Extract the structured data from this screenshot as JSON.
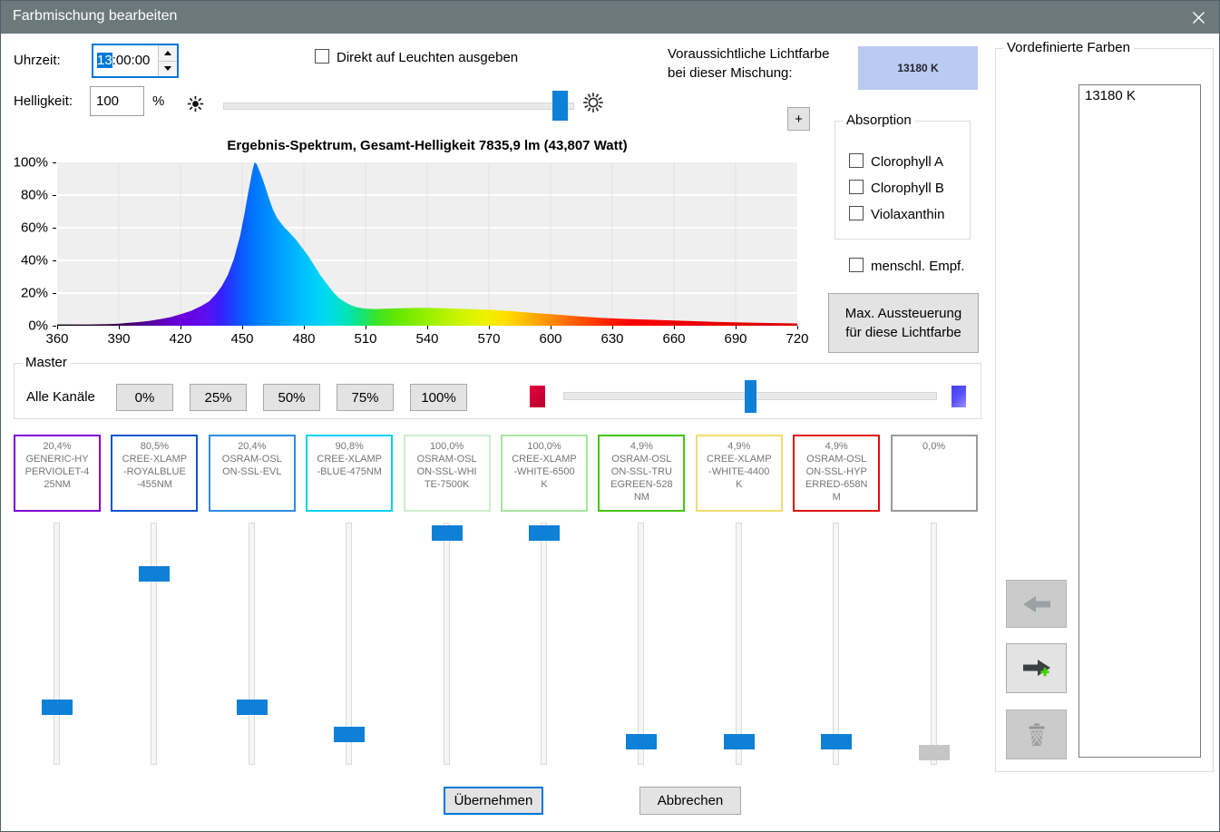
{
  "window": {
    "title": "Farbmischung bearbeiten",
    "close_icon": "close-x"
  },
  "time": {
    "label": "Uhrzeit:",
    "value": "13:00:00",
    "selected_part": "13",
    "rest_part": ":00:00"
  },
  "direct_output_checkbox": {
    "label": "Direkt auf Leuchten ausgeben",
    "checked": false
  },
  "brightness": {
    "label": "Helligkeit:",
    "value": "100",
    "unit": "%",
    "slider_percent": 98,
    "left_icon": "sun-dim-icon",
    "right_icon": "sun-bright-icon"
  },
  "predicted_color": {
    "label_line1": "Voraussichtliche Lichtfarbe",
    "label_line2": "bei dieser Mischung:",
    "value": "13180 K",
    "swatch_color": "#b9cbf2"
  },
  "plus_button_label": "+",
  "absorption": {
    "title": "Absorption",
    "items": [
      "Clorophyll A",
      "Clorophyll B",
      "Violaxanthin"
    ],
    "checked": [
      false,
      false,
      false
    ]
  },
  "human_perception_checkbox": {
    "label": "menschl. Empf.",
    "checked": false
  },
  "max_button_label": "Max. Aussteuerung für diese Lichtfarbe",
  "chart_data": {
    "type": "area",
    "title": "Ergebnis-Spektrum, Gesamt-Helligkeit 7835,9 lm (43,807 Watt)",
    "xlabel": "",
    "ylabel": "",
    "xlim": [
      360,
      720
    ],
    "ylim": [
      0,
      100
    ],
    "x_ticks": [
      360,
      390,
      420,
      450,
      480,
      510,
      540,
      570,
      600,
      630,
      660,
      690,
      720
    ],
    "y_ticks": [
      0,
      20,
      40,
      60,
      80,
      100
    ],
    "y_tick_suffix": "%",
    "grid": true,
    "legend": "none",
    "series": [
      {
        "name": "Ergebnis-Spektrum",
        "fill": "spectral-wavelength-gradient",
        "points": [
          [
            360,
            0.8
          ],
          [
            375,
            0.8
          ],
          [
            385,
            1
          ],
          [
            390,
            1.3
          ],
          [
            395,
            1.8
          ],
          [
            400,
            2.3
          ],
          [
            405,
            3
          ],
          [
            410,
            4
          ],
          [
            415,
            5.2
          ],
          [
            420,
            7
          ],
          [
            425,
            9
          ],
          [
            430,
            12
          ],
          [
            434,
            15
          ],
          [
            437,
            19
          ],
          [
            440,
            24
          ],
          [
            443,
            31
          ],
          [
            446,
            41
          ],
          [
            449,
            55
          ],
          [
            451,
            68
          ],
          [
            453,
            82
          ],
          [
            455,
            95
          ],
          [
            456,
            100
          ],
          [
            457,
            99
          ],
          [
            459,
            93
          ],
          [
            461,
            86
          ],
          [
            463,
            78
          ],
          [
            465,
            71
          ],
          [
            467,
            66
          ],
          [
            470,
            61
          ],
          [
            473,
            57
          ],
          [
            476,
            53
          ],
          [
            479,
            48
          ],
          [
            482,
            43
          ],
          [
            485,
            37
          ],
          [
            488,
            31
          ],
          [
            491,
            26
          ],
          [
            494,
            21
          ],
          [
            497,
            17
          ],
          [
            500,
            14.5
          ],
          [
            503,
            12.5
          ],
          [
            506,
            11.3
          ],
          [
            510,
            10.4
          ],
          [
            515,
            10.2
          ],
          [
            520,
            10.4
          ],
          [
            525,
            10.6
          ],
          [
            530,
            10.8
          ],
          [
            535,
            11
          ],
          [
            540,
            11
          ],
          [
            545,
            10.8
          ],
          [
            550,
            10.6
          ],
          [
            555,
            10.4
          ],
          [
            560,
            10.2
          ],
          [
            565,
            10
          ],
          [
            570,
            9.8
          ],
          [
            575,
            9.4
          ],
          [
            580,
            9
          ],
          [
            585,
            8.5
          ],
          [
            590,
            8
          ],
          [
            595,
            7.5
          ],
          [
            600,
            7.1
          ],
          [
            605,
            6.6
          ],
          [
            610,
            6.1
          ],
          [
            615,
            5.6
          ],
          [
            620,
            5.2
          ],
          [
            625,
            4.8
          ],
          [
            630,
            4.5
          ],
          [
            635,
            4.2
          ],
          [
            640,
            4
          ],
          [
            650,
            3.6
          ],
          [
            660,
            3.2
          ],
          [
            670,
            2.8
          ],
          [
            680,
            2.4
          ],
          [
            690,
            2.1
          ],
          [
            700,
            1.8
          ],
          [
            710,
            1.6
          ],
          [
            720,
            1.4
          ]
        ]
      }
    ]
  },
  "master": {
    "title": "Master",
    "row_label": "Alle Kanäle",
    "preset_buttons": [
      "0%",
      "25%",
      "50%",
      "75%",
      "100%"
    ],
    "slider_percent": 50,
    "left_end_icon": "red-color-swatch",
    "right_end_icon": "blue-color-swatch",
    "left_end_color": "#e4003c",
    "right_end_color": "#5a50ff"
  },
  "channels": [
    {
      "percent": "20,4%",
      "name": "GENERIC-HYPERVIOLET-425NM",
      "border_color": "#7d00d8",
      "slider_pos": 0.78,
      "enabled": true
    },
    {
      "percent": "80,5%",
      "name": "CREE-XLAMP-ROYALBLUE-455NM",
      "border_color": "#0a55cf",
      "slider_pos": 0.19,
      "enabled": true
    },
    {
      "percent": "20,4%",
      "name": "OSRAM-OSLON-SSL-EVL",
      "border_color": "#2e8be6",
      "slider_pos": 0.78,
      "enabled": true
    },
    {
      "percent": "90,8%",
      "name": "CREE-XLAMP-BLUE-475NM",
      "border_color": "#00d2ee",
      "slider_pos": 0.9,
      "enabled": true
    },
    {
      "percent": "100,0%",
      "name": "OSRAM-OSLON-SSL-WHITE-7500K",
      "border_color": "#cdeecd",
      "slider_pos": 0.01,
      "enabled": true
    },
    {
      "percent": "100,0%",
      "name": "CREE-XLAMP-WHITE-6500K",
      "border_color": "#a5e79b",
      "slider_pos": 0.01,
      "enabled": true
    },
    {
      "percent": "4,9%",
      "name": "OSRAM-OSLON-SSL-TRUEGREEN-528NM",
      "border_color": "#46c414",
      "slider_pos": 0.93,
      "enabled": true
    },
    {
      "percent": "4,9%",
      "name": "CREE-XLAMP-WHITE-4400K",
      "border_color": "#f0dc6e",
      "slider_pos": 0.93,
      "enabled": true
    },
    {
      "percent": "4,9%",
      "name": "OSRAM-OSLON-SSL-HYPERRED-658NM",
      "border_color": "#e01111",
      "slider_pos": 0.93,
      "enabled": true
    },
    {
      "percent": "0,0%",
      "name": "",
      "border_color": "#9a9a9a",
      "slider_pos": 0.98,
      "enabled": false
    }
  ],
  "footer": {
    "apply_label": "Übernehmen",
    "cancel_label": "Abbrechen"
  },
  "predefined_colors": {
    "title": "Vordefinierte Farben",
    "items": [
      "13180 K"
    ],
    "buttons": {
      "recall_icon": "arrow-left-icon",
      "add_icon": "arrow-right-plus-icon",
      "delete_icon": "trash-icon"
    }
  }
}
